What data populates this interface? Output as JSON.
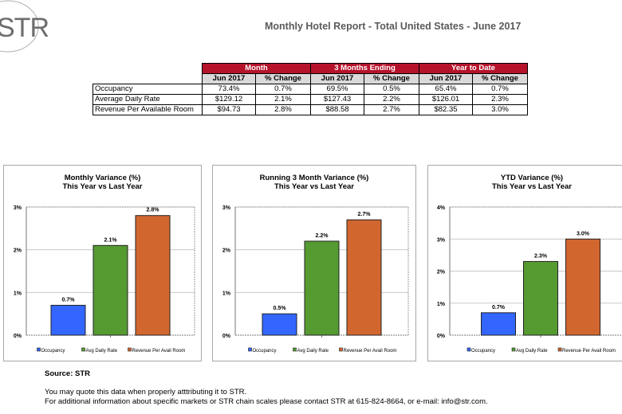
{
  "logo": {
    "text": "STR"
  },
  "header": {
    "title": "Monthly Hotel Report - Total United States - June 2017"
  },
  "summary_table": {
    "groups": [
      "Month",
      "3 Months Ending",
      "Year to Date"
    ],
    "subheaders": [
      "Jun 2017",
      "% Change",
      "Jun 2017",
      "% Change",
      "Jun 2017",
      "% Change"
    ],
    "rows": [
      {
        "label": "Occupancy",
        "values": [
          "73.4%",
          "0.7%",
          "69.5%",
          "0.5%",
          "65.4%",
          "0.7%"
        ]
      },
      {
        "label": "Average Daily Rate",
        "values": [
          "$129.12",
          "2.1%",
          "$127.43",
          "2.2%",
          "$126.01",
          "2.3%"
        ]
      },
      {
        "label": "Revenue Per Available Room",
        "values": [
          "$94.73",
          "2.8%",
          "$88.58",
          "2.7%",
          "$82.35",
          "3.0%"
        ]
      }
    ]
  },
  "colors": {
    "header_red": "#b5132b",
    "occupancy": "#3366ff",
    "adr": "#569a32",
    "revpar": "#d2662f"
  },
  "chart_data": [
    {
      "type": "bar",
      "title": "Monthly Variance (%)",
      "subtitle": "This Year vs Last Year",
      "categories": [
        "Occupancy",
        "Avg Daily Rate",
        "Revenue Per Avail Room"
      ],
      "values": [
        0.7,
        2.1,
        2.8
      ],
      "data_labels": [
        "0.7%",
        "2.1%",
        "2.8%"
      ],
      "ylim": [
        0,
        3
      ],
      "yticks": [
        "0%",
        "1%",
        "2%",
        "3%"
      ],
      "xlabel": "",
      "ylabel": "",
      "grid": true,
      "legend": "bottom"
    },
    {
      "type": "bar",
      "title": "Running 3 Month Variance (%)",
      "subtitle": "This Year vs Last Year",
      "categories": [
        "Occupancy",
        "Avg Daily Rate",
        "Revenue Per Avail Room"
      ],
      "values": [
        0.5,
        2.2,
        2.7
      ],
      "data_labels": [
        "0.5%",
        "2.2%",
        "2.7%"
      ],
      "ylim": [
        0,
        3
      ],
      "yticks": [
        "0%",
        "1%",
        "2%",
        "3%"
      ],
      "xlabel": "",
      "ylabel": "",
      "grid": true,
      "legend": "bottom"
    },
    {
      "type": "bar",
      "title": "YTD Variance (%)",
      "subtitle": "This Year vs Last Year",
      "categories": [
        "Occupancy",
        "Avg Daily Rate",
        "Revenue Per Avail Room"
      ],
      "values": [
        0.7,
        2.3,
        3.0
      ],
      "data_labels": [
        "0.7%",
        "2.3%",
        "3.0%"
      ],
      "ylim": [
        0,
        4
      ],
      "yticks": [
        "0%",
        "1%",
        "2%",
        "3%",
        "4%"
      ],
      "xlabel": "",
      "ylabel": "",
      "grid": true,
      "legend": "bottom"
    }
  ],
  "footer": {
    "source": "Source: STR",
    "note_line1": "You may quote this data when properly atttributing it to STR.",
    "note_line2": "For additional information about specific markets or STR chain scales please contact STR at 615-824-8664, or e-mail: info@str.com."
  }
}
